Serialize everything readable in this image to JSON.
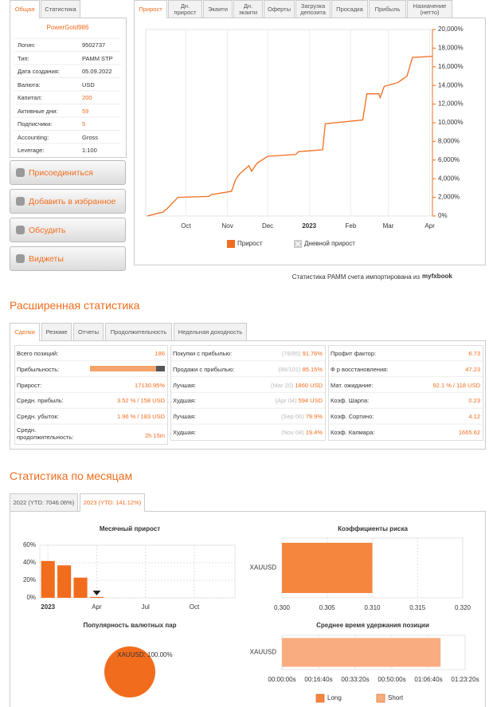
{
  "sidebar": {
    "tabs": [
      "Общая",
      "Статистика"
    ],
    "name": "PowerGold986",
    "rows": [
      {
        "label": "Логин:",
        "value": "9502737"
      },
      {
        "label": "Тип:",
        "value": "PAMM STP"
      },
      {
        "label": "Дата создания:",
        "value": "05.09.2022"
      },
      {
        "label": "Валюта:",
        "value": "USD"
      },
      {
        "label": "Капитал:",
        "value": "200"
      },
      {
        "label": "Активные дни:",
        "value": "59"
      },
      {
        "label": "Подписчики:",
        "value": "5"
      },
      {
        "label": "Accounting:",
        "value": "Gross"
      },
      {
        "label": "Leverage:",
        "value": "1:100"
      }
    ]
  },
  "buttons": [
    "Присоединиться",
    "Добавить в избранное",
    "Обсудить",
    "Виджеты"
  ],
  "chart_tabs": [
    "Прирост",
    "Дн. прирост",
    "Экаити",
    "Дн. экаити",
    "Оферты",
    "Загрузка депозита",
    "Просадка",
    "Прибыль",
    "Назначение (нетто)"
  ],
  "growth_chart": {
    "type": "line",
    "x": [
      -3,
      9,
      12,
      20,
      43,
      45,
      60,
      63,
      66,
      73,
      75,
      79,
      87,
      108,
      110,
      128,
      130,
      158,
      161,
      170,
      171,
      174,
      184,
      187,
      191,
      195,
      210
    ],
    "series": [
      {
        "name": "Прирост",
        "color": "#f26c1d",
        "values": [
          0,
          430,
          800,
          2000,
          2100,
          2300,
          2650,
          3900,
          4500,
          5400,
          4800,
          5650,
          6400,
          6600,
          6900,
          7100,
          9900,
          10300,
          13100,
          13100,
          12700,
          13900,
          14300,
          14600,
          15000,
          17000,
          17130
        ]
      },
      {
        "name": "Дневной прирост",
        "color": "#c8c8c8",
        "hidden": true,
        "values": [
          null,
          null,
          null,
          null,
          null,
          null,
          null,
          null,
          null,
          null,
          null,
          null,
          null,
          null,
          null,
          null,
          null,
          null,
          null,
          null,
          null,
          null,
          null,
          null,
          null,
          null,
          null
        ]
      }
    ],
    "xlim": [
      -4,
      210
    ],
    "xticks": [
      {
        "value": 26,
        "label": "Oct"
      },
      {
        "value": 57,
        "label": "Nov"
      },
      {
        "value": 87,
        "label": "Dec"
      },
      {
        "value": 118,
        "label": "2023"
      },
      {
        "value": 149,
        "label": "Feb"
      },
      {
        "value": 177,
        "label": "Mar"
      },
      {
        "value": 208,
        "label": "Apr"
      }
    ],
    "ylim": [
      0,
      20000
    ],
    "yticks": [
      {
        "value": 0,
        "label": "0%"
      },
      {
        "value": 2000,
        "label": "2,000%"
      },
      {
        "value": 4000,
        "label": "4,000%"
      },
      {
        "value": 6000,
        "label": "6,000%"
      },
      {
        "value": 8000,
        "label": "8,000%"
      },
      {
        "value": 10000,
        "label": "10,000%"
      },
      {
        "value": 12000,
        "label": "12,000%"
      },
      {
        "value": 14000,
        "label": "14,000%"
      },
      {
        "value": 16000,
        "label": "16,000%"
      },
      {
        "value": 18000,
        "label": "18,000%"
      },
      {
        "value": 20000,
        "label": "20,000%"
      }
    ],
    "y_axis_side": "right",
    "grid": true
  },
  "import_note": "Статистика PAMM счета импортирована из",
  "logo": "myfxbook",
  "extended": {
    "title": "Расширенная статистика",
    "tabs": [
      "Сделки",
      "Резюме",
      "Отчеты",
      "Продолжительность",
      "Недельная доходность"
    ],
    "columns": [
      [
        {
          "label": "Всего позиций:",
          "value": "186"
        },
        {
          "label": "Прибыльность:",
          "bar": 88
        },
        {
          "label": "Прирост:",
          "value": "17130.95%"
        },
        {
          "label": "Средн. прибыль:",
          "value": "3.52 % / 158 USD"
        },
        {
          "label": "Средн. убыток:",
          "value": "1.96 % / 183 USD"
        },
        {
          "label": "Средн. продолжительность:",
          "value": "2h 15m"
        }
      ],
      [
        {
          "label": "Покупки с прибылью:",
          "note": "(78/85)",
          "value": "91.76%"
        },
        {
          "label": "Продажи с прибылью:",
          "note": "(86/101)",
          "value": "85.15%"
        },
        {
          "label": "Лучшая:",
          "note": "(Mar 20)",
          "value": "1860 USD"
        },
        {
          "label": "Худшая:",
          "note": "(Apr 04)",
          "value": "594 USD"
        },
        {
          "label": "Лучшая:",
          "note": "(Sep 06)",
          "value": "79.9%"
        },
        {
          "label": "Худшая:",
          "note": "(Nov 04)",
          "value": "19.4%"
        }
      ],
      [
        {
          "label": "Профит фактор:",
          "value": "6.73"
        },
        {
          "label": "Ф р восстановления:",
          "value": "47.23"
        },
        {
          "label": "Мат. ожидание:",
          "value": "92.1 % / 118 USD"
        },
        {
          "label": "Коэф. Шарпа:",
          "value": "0.23"
        },
        {
          "label": "Коэф. Сортино:",
          "value": "4.12"
        },
        {
          "label": "Коэф. Калмара:",
          "value": "1665.62"
        }
      ]
    ]
  },
  "monthly": {
    "title": "Статистика по месяцам",
    "tabs": [
      "2022 (YTD: 7046.06%)",
      "2023 (YTD: 141.12%)"
    ],
    "charts": [
      {
        "type": "bar",
        "title": "Месячный прирост",
        "categories": [
          "2023",
          null,
          null,
          "Apr",
          null,
          null,
          "Jul",
          null,
          null,
          "Oct",
          null,
          null
        ],
        "values": [
          42,
          37,
          23,
          1,
          null,
          null,
          null,
          null,
          null,
          null,
          null,
          null
        ],
        "color": "#f26c1d",
        "ylim": [
          0,
          60
        ],
        "yticks": [
          {
            "value": 0,
            "label": "0%"
          },
          {
            "value": 20,
            "label": "20%"
          },
          {
            "value": 40,
            "label": "40%"
          },
          {
            "value": 60,
            "label": "60%"
          }
        ],
        "grid": true
      },
      {
        "type": "hbar",
        "title": "Коэффициенты риска",
        "categories": [
          "XAUUSD"
        ],
        "series": [
          {
            "color": "#f5863e",
            "values": [
              0.31
            ]
          }
        ],
        "xlim": [
          0.3,
          0.32
        ],
        "xticks": [
          {
            "value": 0.3,
            "label": "0.300"
          },
          {
            "value": 0.305,
            "label": "0.305"
          },
          {
            "value": 0.31,
            "label": "0.310"
          },
          {
            "value": 0.315,
            "label": "0.315"
          },
          {
            "value": 0.32,
            "label": "0.320"
          }
        ],
        "grid": true
      },
      {
        "type": "pie",
        "title": "Популярность валютных пар",
        "categories": [
          "XAUUSD"
        ],
        "values": [
          100
        ],
        "value_labels": [
          "XAUUSD: 100.00%"
        ],
        "colors": [
          "#f26c1d"
        ]
      },
      {
        "type": "hbar",
        "title": "Среднее время удержания позиции",
        "categories": [
          "XAUUSD"
        ],
        "series": [
          {
            "name": "Long",
            "color": "#f5863e",
            "values": [
              null
            ]
          },
          {
            "name": "Short",
            "color": "#f8ac7f",
            "values": [
              4330
            ]
          }
        ],
        "xlim": [
          0,
          5000
        ],
        "xticks": [
          {
            "value": 0,
            "label": "00:00:00s"
          },
          {
            "value": 1000,
            "label": "00:16:40s"
          },
          {
            "value": 2000,
            "label": "00:33:20s"
          },
          {
            "value": 3000,
            "label": "00:50:00s"
          },
          {
            "value": 4000,
            "label": "01:06:40s"
          },
          {
            "value": 5000,
            "label": "01:23:20s"
          }
        ],
        "grid": true
      }
    ]
  }
}
